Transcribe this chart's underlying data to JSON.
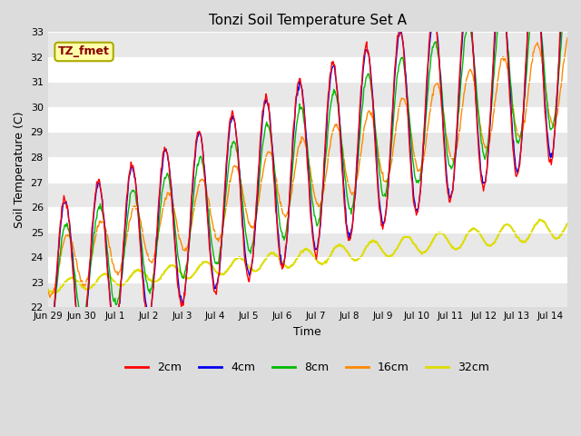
{
  "title": "Tonzi Soil Temperature Set A",
  "xlabel": "Time",
  "ylabel": "Soil Temperature (C)",
  "ylim": [
    22.0,
    33.0
  ],
  "yticks": [
    22.0,
    23.0,
    24.0,
    25.0,
    26.0,
    27.0,
    28.0,
    29.0,
    30.0,
    31.0,
    32.0,
    33.0
  ],
  "colors": {
    "2cm": "#FF0000",
    "4cm": "#0000EE",
    "8cm": "#00BB00",
    "16cm": "#FF8800",
    "32cm": "#DDDD00"
  },
  "annotation_label": "TZ_fmet",
  "annotation_color": "#880000",
  "annotation_bg": "#FFFFAA",
  "annotation_edge": "#AAAA00",
  "plot_bg_light": "#FFFFFF",
  "plot_bg_dark": "#E8E8E8",
  "background_color": "#DCDCDC",
  "n_days": 15.5,
  "samples_per_day": 48,
  "day_labels": [
    "Jun 29",
    "Jun 30",
    "Jul 1",
    "Jul 2",
    "Jul 3",
    "Jul 4",
    "Jul 5",
    "Jul 6",
    "Jul 7",
    "Jul 8",
    "Jul 9",
    "Jul 10",
    "Jul 11",
    "Jul 12",
    "Jul 13",
    "Jul 14"
  ]
}
